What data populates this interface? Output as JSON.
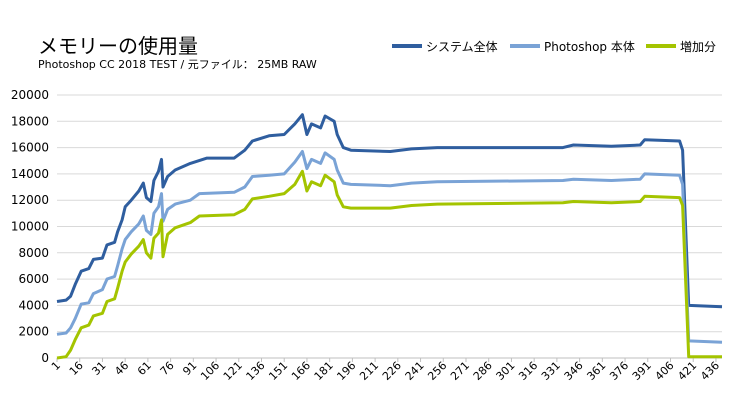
{
  "chart_data": {
    "type": "line",
    "title": "メモリーの使用量",
    "subtitle": "Photoshop CC 2018 TEST / 元ファイル： 25MB RAW",
    "xlabel": "",
    "ylabel": "",
    "ylim": [
      0,
      20000
    ],
    "yticks": [
      0,
      2000,
      4000,
      6000,
      8000,
      10000,
      12000,
      14000,
      16000,
      18000,
      20000
    ],
    "xlim": [
      1,
      440
    ],
    "xticks": [
      1,
      16,
      31,
      46,
      61,
      76,
      91,
      106,
      121,
      136,
      151,
      166,
      181,
      196,
      211,
      226,
      241,
      256,
      271,
      286,
      301,
      316,
      331,
      346,
      361,
      376,
      391,
      406,
      421,
      436
    ],
    "grid": "horizontal",
    "legend_position": "top-right",
    "series": [
      {
        "name": "システム全体",
        "color": "#2f5e9f",
        "points": [
          [
            1,
            4300
          ],
          [
            7,
            4400
          ],
          [
            10,
            4700
          ],
          [
            13,
            5600
          ],
          [
            17,
            6600
          ],
          [
            22,
            6800
          ],
          [
            25,
            7500
          ],
          [
            31,
            7600
          ],
          [
            34,
            8600
          ],
          [
            39,
            8800
          ],
          [
            41,
            9600
          ],
          [
            44,
            10500
          ],
          [
            46,
            11500
          ],
          [
            50,
            12000
          ],
          [
            55,
            12700
          ],
          [
            58,
            13300
          ],
          [
            60,
            12200
          ],
          [
            63,
            11900
          ],
          [
            65,
            13500
          ],
          [
            68,
            14200
          ],
          [
            70,
            15100
          ],
          [
            71,
            13000
          ],
          [
            74,
            13800
          ],
          [
            79,
            14300
          ],
          [
            89,
            14800
          ],
          [
            100,
            15200
          ],
          [
            118,
            15200
          ],
          [
            125,
            15800
          ],
          [
            130,
            16500
          ],
          [
            141,
            16900
          ],
          [
            151,
            17000
          ],
          [
            158,
            17800
          ],
          [
            163,
            18500
          ],
          [
            166,
            17000
          ],
          [
            169,
            17800
          ],
          [
            175,
            17500
          ],
          [
            178,
            18400
          ],
          [
            184,
            18000
          ],
          [
            186,
            17000
          ],
          [
            190,
            16000
          ],
          [
            195,
            15800
          ],
          [
            221,
            15700
          ],
          [
            235,
            15900
          ],
          [
            252,
            16000
          ],
          [
            335,
            16000
          ],
          [
            342,
            16200
          ],
          [
            367,
            16100
          ],
          [
            386,
            16200
          ],
          [
            389,
            16600
          ],
          [
            412,
            16500
          ],
          [
            414,
            15800
          ],
          [
            418,
            4000
          ],
          [
            440,
            3900
          ]
        ]
      },
      {
        "name": "Photoshop 本体",
        "color": "#7aa3d6",
        "points": [
          [
            1,
            1800
          ],
          [
            7,
            1900
          ],
          [
            10,
            2300
          ],
          [
            13,
            3000
          ],
          [
            17,
            4100
          ],
          [
            22,
            4200
          ],
          [
            25,
            4900
          ],
          [
            31,
            5200
          ],
          [
            34,
            6000
          ],
          [
            39,
            6200
          ],
          [
            41,
            7000
          ],
          [
            44,
            8300
          ],
          [
            46,
            9000
          ],
          [
            50,
            9600
          ],
          [
            55,
            10200
          ],
          [
            58,
            10800
          ],
          [
            60,
            9700
          ],
          [
            63,
            9400
          ],
          [
            65,
            11000
          ],
          [
            68,
            11500
          ],
          [
            70,
            12500
          ],
          [
            71,
            10400
          ],
          [
            74,
            11300
          ],
          [
            79,
            11700
          ],
          [
            89,
            12000
          ],
          [
            95,
            12500
          ],
          [
            118,
            12600
          ],
          [
            125,
            13000
          ],
          [
            130,
            13800
          ],
          [
            141,
            13900
          ],
          [
            151,
            14000
          ],
          [
            158,
            14900
          ],
          [
            163,
            15700
          ],
          [
            166,
            14400
          ],
          [
            169,
            15100
          ],
          [
            175,
            14800
          ],
          [
            178,
            15600
          ],
          [
            184,
            15100
          ],
          [
            186,
            14300
          ],
          [
            190,
            13300
          ],
          [
            195,
            13200
          ],
          [
            221,
            13100
          ],
          [
            235,
            13300
          ],
          [
            252,
            13400
          ],
          [
            335,
            13500
          ],
          [
            342,
            13600
          ],
          [
            367,
            13500
          ],
          [
            386,
            13600
          ],
          [
            389,
            14000
          ],
          [
            412,
            13900
          ],
          [
            414,
            13200
          ],
          [
            418,
            1300
          ],
          [
            440,
            1200
          ]
        ]
      },
      {
        "name": "増加分",
        "color": "#a4c400",
        "points": [
          [
            1,
            0
          ],
          [
            7,
            100
          ],
          [
            10,
            600
          ],
          [
            13,
            1400
          ],
          [
            17,
            2300
          ],
          [
            22,
            2500
          ],
          [
            25,
            3200
          ],
          [
            31,
            3400
          ],
          [
            34,
            4300
          ],
          [
            39,
            4500
          ],
          [
            41,
            5300
          ],
          [
            44,
            6600
          ],
          [
            46,
            7300
          ],
          [
            50,
            7900
          ],
          [
            55,
            8500
          ],
          [
            58,
            9000
          ],
          [
            60,
            8000
          ],
          [
            63,
            7600
          ],
          [
            65,
            9100
          ],
          [
            68,
            9500
          ],
          [
            70,
            10500
          ],
          [
            71,
            7700
          ],
          [
            74,
            9400
          ],
          [
            79,
            9900
          ],
          [
            89,
            10300
          ],
          [
            95,
            10800
          ],
          [
            118,
            10900
          ],
          [
            125,
            11300
          ],
          [
            130,
            12100
          ],
          [
            141,
            12300
          ],
          [
            151,
            12500
          ],
          [
            158,
            13200
          ],
          [
            163,
            14200
          ],
          [
            166,
            12700
          ],
          [
            169,
            13400
          ],
          [
            175,
            13100
          ],
          [
            178,
            13900
          ],
          [
            184,
            13400
          ],
          [
            186,
            12400
          ],
          [
            190,
            11500
          ],
          [
            195,
            11400
          ],
          [
            221,
            11400
          ],
          [
            235,
            11600
          ],
          [
            252,
            11700
          ],
          [
            335,
            11800
          ],
          [
            342,
            11900
          ],
          [
            367,
            11800
          ],
          [
            386,
            11900
          ],
          [
            389,
            12300
          ],
          [
            412,
            12200
          ],
          [
            414,
            11600
          ],
          [
            418,
            100
          ],
          [
            440,
            100
          ]
        ]
      }
    ]
  }
}
